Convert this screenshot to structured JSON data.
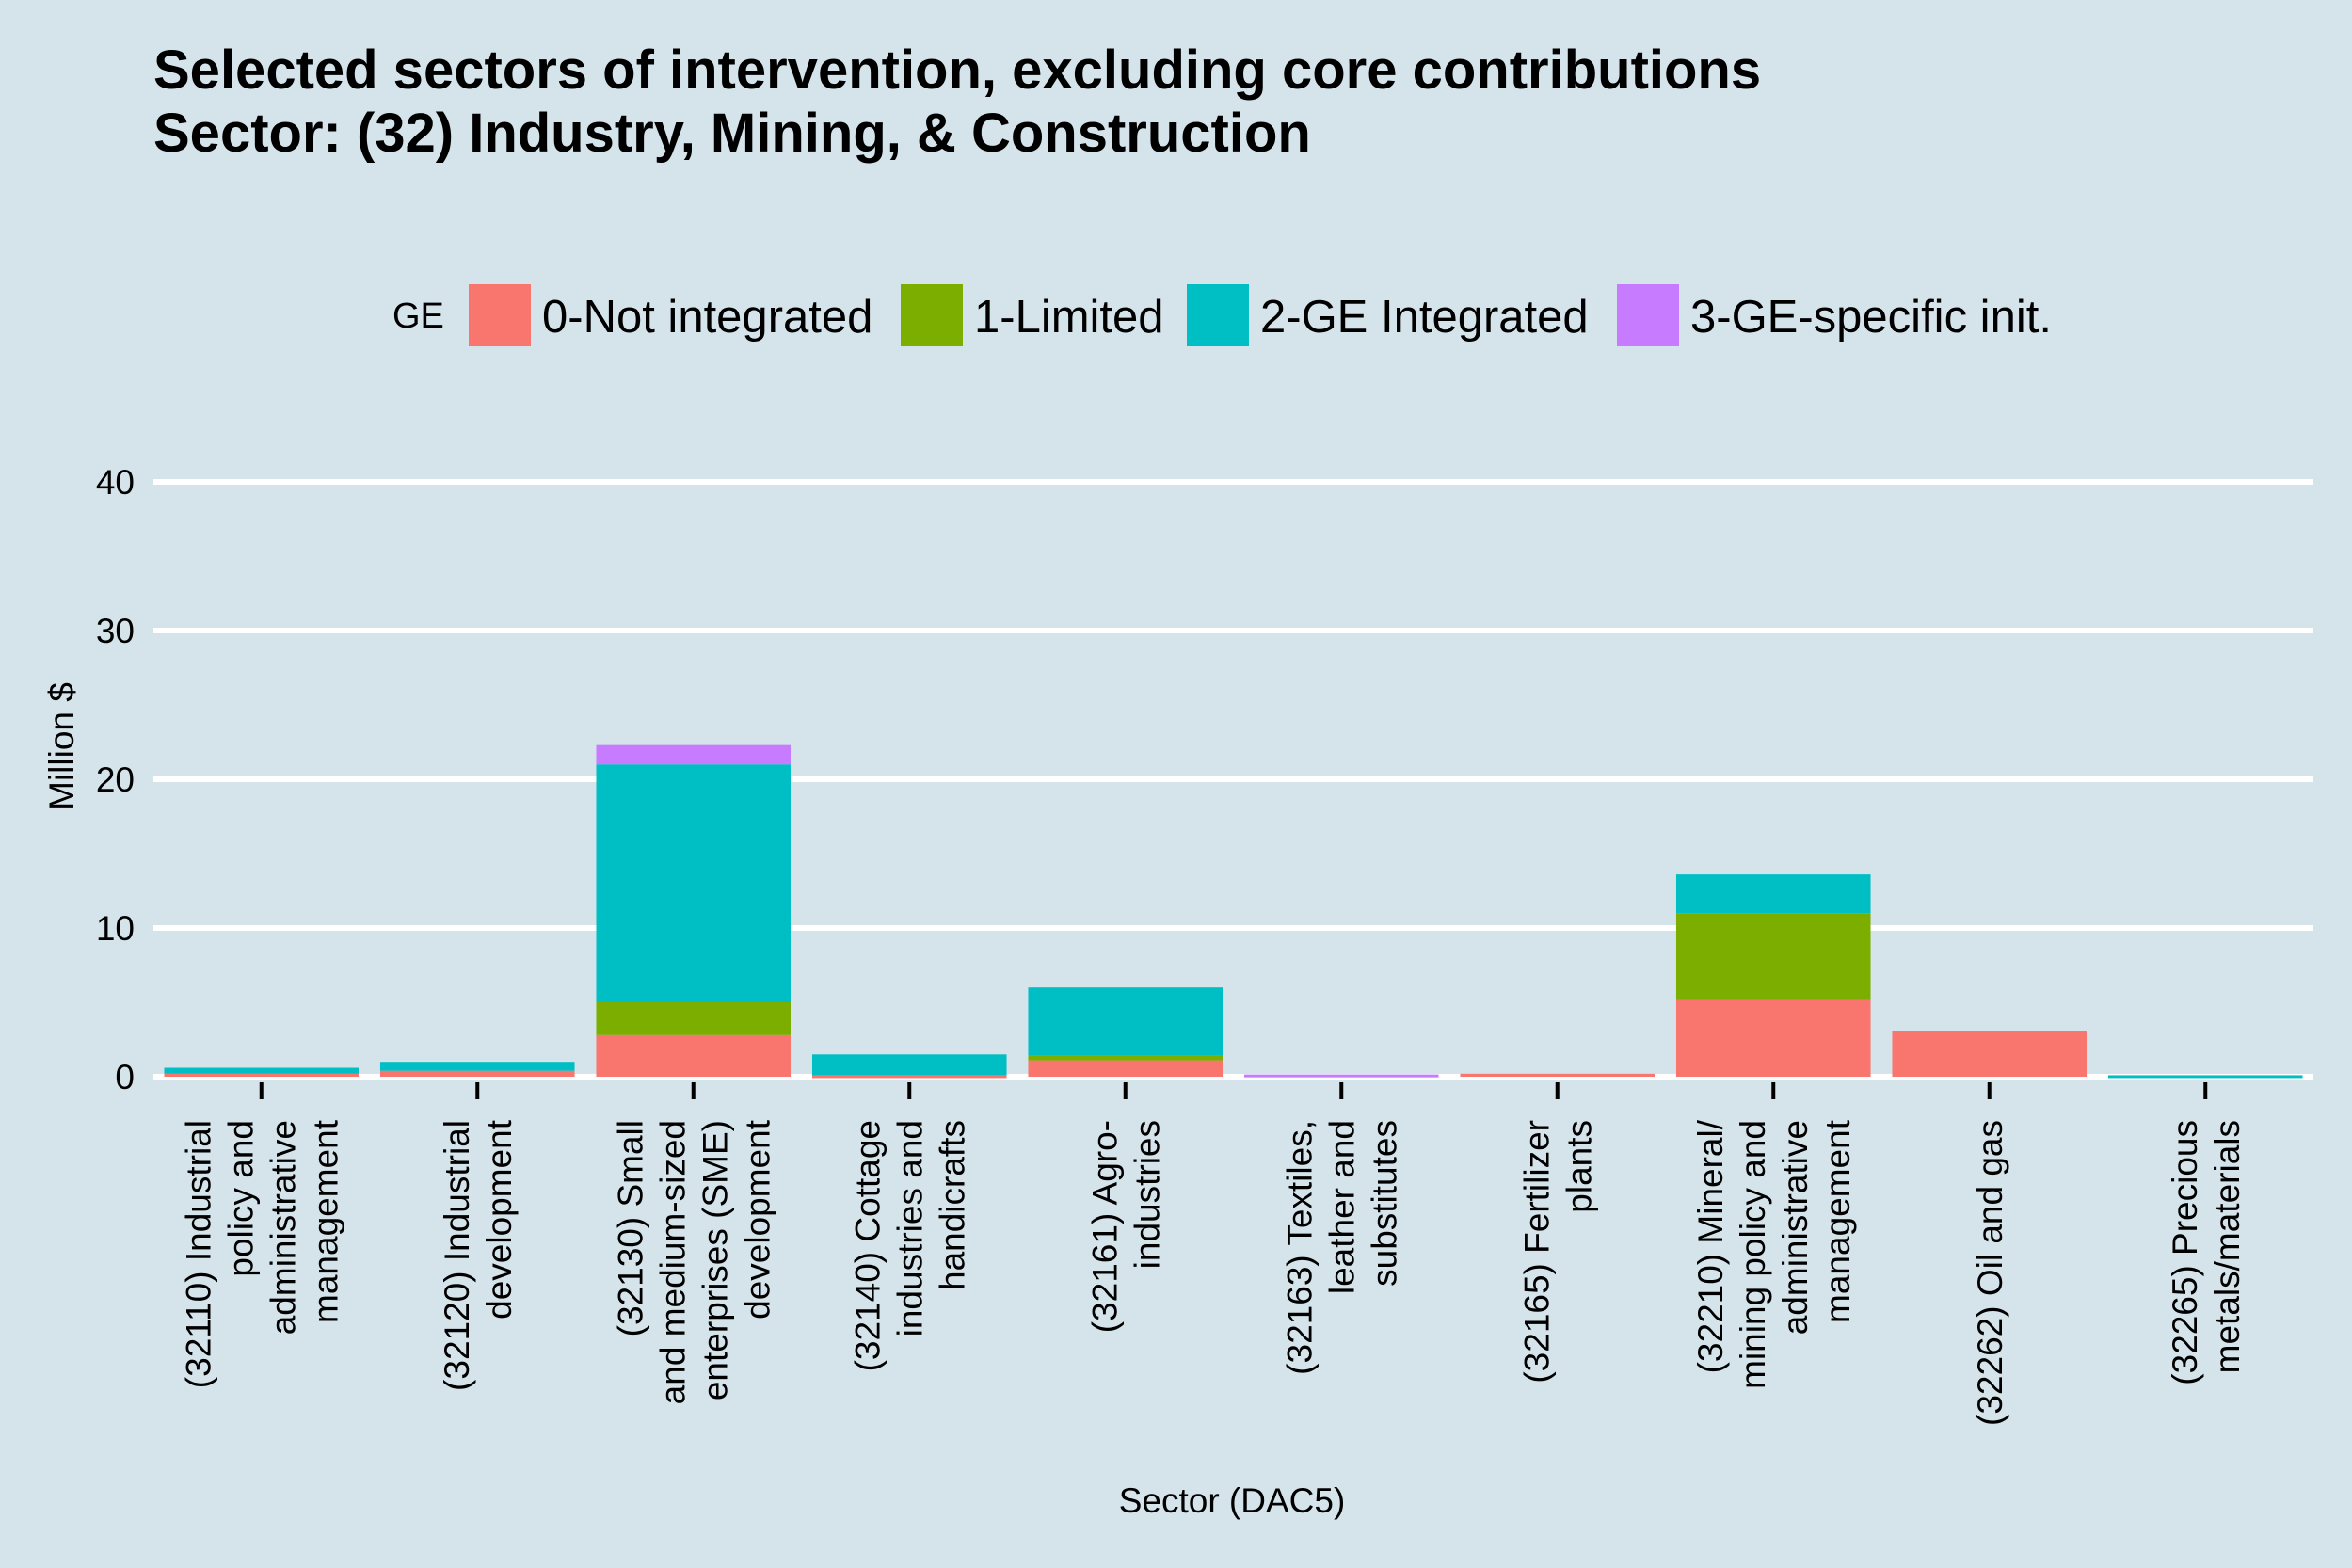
{
  "chart_data": {
    "type": "bar",
    "stacked": true,
    "title": "Selected sectors of intervention, excluding core contributions",
    "subtitle": "Sector: (32) Industry, Mining, & Construction",
    "xlabel": "Sector (DAC5)",
    "ylabel": "Million $",
    "ylim": [
      0,
      40
    ],
    "yticks": [
      0,
      10,
      20,
      30,
      40
    ],
    "grid": true,
    "legend_title": "GE",
    "legend_position": "top",
    "categories": [
      "(32110) Industrial policy and administrative management",
      "(32120) Industrial development",
      "(32130) Small and medium-sized enterprises (SME) development",
      "(32140) Cottage industries and handicrafts",
      "(32161) Agro-industries",
      "(32163) Textiles, leather and substitutes",
      "(32165) Fertilizer plants",
      "(32210) Mineral/ mining policy and administrative management",
      "(32262) Oil and gas",
      "(32265) Precious metals/materials"
    ],
    "category_label_lines": [
      [
        "(32110) Industrial",
        "policy and",
        "administrative",
        "management"
      ],
      [
        "(32120) Industrial",
        "development"
      ],
      [
        "(32130) Small",
        "and medium-sized",
        "enterprises (SME)",
        "development"
      ],
      [
        "(32140) Cottage",
        "industries and",
        "handicrafts"
      ],
      [
        "(32161) Agro-",
        "industries"
      ],
      [
        "(32163) Textiles,",
        "leather and",
        "substitutes"
      ],
      [
        "(32165) Fertilizer",
        "plants"
      ],
      [
        "(32210) Mineral/",
        "mining policy and",
        "administrative",
        "management"
      ],
      [
        "(32262) Oil and gas"
      ],
      [
        "(32265) Precious",
        "metals/materials"
      ]
    ],
    "series": [
      {
        "name": "0-Not integrated",
        "color": "#f8766d",
        "values": [
          0.2,
          0.4,
          2.8,
          0.1,
          1.1,
          0.0,
          0.2,
          5.2,
          3.1,
          0.0
        ]
      },
      {
        "name": "1-Limited",
        "color": "#7cae00",
        "values": [
          0.0,
          0.0,
          2.2,
          0.0,
          0.3,
          0.0,
          0.0,
          5.8,
          0.0,
          0.0
        ]
      },
      {
        "name": "2-GE Integrated",
        "color": "#00bfc4",
        "values": [
          0.4,
          0.6,
          16.0,
          1.4,
          4.6,
          0.0,
          0.0,
          2.6,
          0.0,
          0.1
        ]
      },
      {
        "name": "3-GE-specific init.",
        "color": "#c77cff",
        "values": [
          0.0,
          0.0,
          1.3,
          0.0,
          0.0,
          0.15,
          0.0,
          0.0,
          0.0,
          0.0
        ]
      }
    ]
  }
}
